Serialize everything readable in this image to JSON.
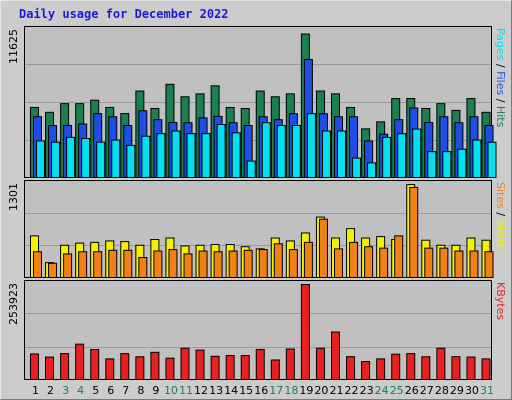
{
  "title": "Daily usage for December 2022",
  "chart_data": {
    "type": "bar",
    "title": "Daily usage for December 2022",
    "categories": [
      "1",
      "2",
      "3",
      "4",
      "5",
      "6",
      "7",
      "8",
      "9",
      "10",
      "11",
      "12",
      "13",
      "14",
      "15",
      "16",
      "17",
      "18",
      "19",
      "20",
      "21",
      "22",
      "23",
      "24",
      "25",
      "26",
      "27",
      "28",
      "29",
      "30",
      "31"
    ],
    "weekend_days": [
      "3",
      "4",
      "10",
      "11",
      "17",
      "18",
      "24",
      "25",
      "31"
    ],
    "panels": [
      {
        "id": "hits",
        "max_label": "11625",
        "ylim": [
          0,
          11625
        ],
        "legend": [
          {
            "text": "Pages",
            "color": "#00e0f0"
          },
          {
            "text": " / ",
            "color": "#000000"
          },
          {
            "text": "Files",
            "color": "#1e4ee6"
          },
          {
            "text": " / ",
            "color": "#000000"
          },
          {
            "text": "Hits",
            "color": "#1a8050"
          }
        ],
        "series": [
          {
            "name": "Hits",
            "color": "#1a8050",
            "values": [
              5580,
              5200,
              5880,
              5880,
              6150,
              5580,
              5100,
              6870,
              5500,
              7400,
              6420,
              6650,
              7280,
              5580,
              5500,
              6870,
              6420,
              6650,
              11350,
              6870,
              6650,
              5580,
              3900,
              4450,
              6280,
              6280,
              5500,
              5880,
              5350,
              6280,
              5200
            ]
          },
          {
            "name": "Files",
            "color": "#1e4ee6",
            "values": [
              4850,
              4160,
              4160,
              4280,
              5090,
              4850,
              4160,
              5320,
              4620,
              4400,
              4380,
              4760,
              4880,
              4380,
              4160,
              4850,
              4620,
              5090,
              9350,
              5090,
              4850,
              4850,
              2950,
              3480,
              4620,
              5540,
              4400,
              4850,
              4380,
              4850,
              4160
            ]
          },
          {
            "name": "Pages",
            "color": "#00e0f0",
            "values": [
              2950,
              2850,
              3230,
              3140,
              2850,
              3020,
              2600,
              3320,
              3520,
              3730,
              3520,
              3520,
              4240,
              3590,
              1370,
              4380,
              4160,
              4160,
              5090,
              3730,
              3730,
              1600,
              1230,
              3230,
              3520,
              3880,
              2110,
              2110,
              2300,
              3020,
              2850
            ]
          }
        ]
      },
      {
        "id": "visits",
        "max_label": "1301",
        "ylim": [
          0,
          1301
        ],
        "legend": [
          {
            "text": "Sites",
            "color": "#f08018"
          },
          {
            "text": " / ",
            "color": "#000000"
          },
          {
            "text": "Visits",
            "color": "#f2f200"
          }
        ],
        "series": [
          {
            "name": "Visits",
            "color": "#f2f200",
            "values": [
              590,
              220,
              460,
              490,
              500,
              520,
              510,
              460,
              540,
              560,
              450,
              460,
              470,
              470,
              440,
              410,
              560,
              520,
              630,
              850,
              560,
              690,
              560,
              580,
              540,
              1300,
              530,
              460,
              460,
              560,
              530
            ]
          },
          {
            "name": "Sites",
            "color": "#f08018",
            "values": [
              370,
              210,
              340,
              370,
              370,
              390,
              390,
              290,
              380,
              400,
              340,
              380,
              370,
              380,
              390,
              400,
              480,
              400,
              500,
              820,
              410,
              500,
              440,
              420,
              590,
              1260,
              420,
              420,
              380,
              380,
              370
            ]
          }
        ]
      },
      {
        "id": "kbytes",
        "max_label": "253923",
        "ylim": [
          0,
          253923
        ],
        "legend": [
          {
            "text": "KBytes",
            "color": "#e82020"
          }
        ],
        "series": [
          {
            "name": "KBytes",
            "color": "#e82020",
            "values": [
              70300,
              61900,
              71100,
              96100,
              81900,
              57200,
              71100,
              62800,
              74500,
              59000,
              85300,
              80400,
              64000,
              66000,
              66000,
              81900,
              54300,
              83300,
              253900,
              85300,
              128300,
              63000,
              50200,
              57200,
              69600,
              71100,
              62800,
              85300,
              63000,
              62000,
              57200
            ]
          }
        ]
      }
    ]
  }
}
